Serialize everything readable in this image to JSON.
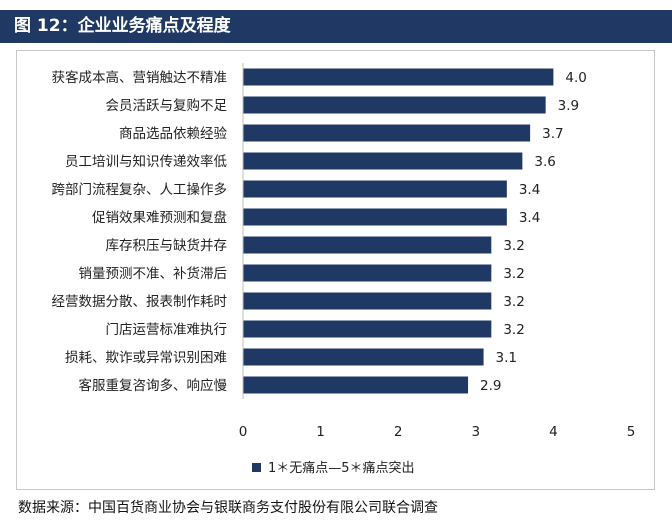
{
  "title": "图 12：企业业务痛点及程度",
  "source": "数据来源：中国百货商业协会与银联商务支付股份有限公司联合调查",
  "colors": {
    "bar": "#1f3864",
    "title_bg": "#1f3864"
  },
  "chart_data": {
    "type": "bar",
    "orientation": "horizontal",
    "categories": [
      "获客成本高、营销触达不精准",
      "会员活跃与复购不足",
      "商品选品依赖经验",
      "员工培训与知识传递效率低",
      "跨部门流程复杂、人工操作多",
      "促销效果难预测和复盘",
      "库存积压与缺货并存",
      "销量预测不准、补货滞后",
      "经营数据分散、报表制作耗时",
      "门店运营标准难执行",
      "损耗、欺诈或异常识别困难",
      "客服重复咨询多、响应慢"
    ],
    "series": [
      {
        "name": "1＊无痛点—5＊痛点突出",
        "values": [
          4.0,
          3.9,
          3.7,
          3.6,
          3.4,
          3.4,
          3.2,
          3.2,
          3.2,
          3.2,
          3.1,
          2.9
        ],
        "labels": [
          "4.0",
          "3.9",
          "3.7",
          "3.6",
          "3.4",
          "3.4",
          "3.2",
          "3.2",
          "3.2",
          "3.2",
          "3.1",
          "2.9"
        ]
      }
    ],
    "xlim": [
      0,
      5
    ],
    "xticks": [
      "0",
      "1",
      "2",
      "3",
      "4",
      "5"
    ],
    "grid": false,
    "legend": "bottom"
  }
}
